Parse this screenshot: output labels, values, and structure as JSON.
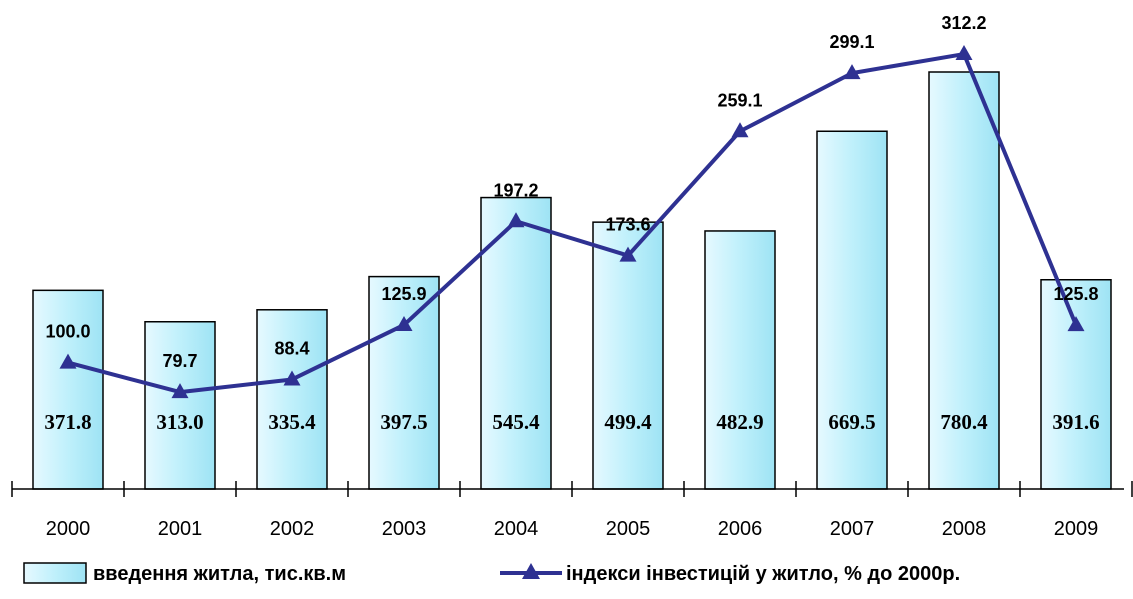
{
  "chart_data": {
    "type": "bar",
    "categories": [
      "2000",
      "2001",
      "2002",
      "2003",
      "2004",
      "2005",
      "2006",
      "2007",
      "2008",
      "2009"
    ],
    "series": [
      {
        "name": "введення житла, тис.кв.м",
        "type": "bar",
        "values": [
          371.8,
          313.0,
          335.4,
          397.5,
          545.4,
          499.4,
          482.9,
          669.5,
          780.4,
          391.6
        ],
        "labels": [
          "371.8",
          "313.0",
          "335.4",
          "397.5",
          "545.4",
          "499.4",
          "482.9",
          "669.5",
          "780.4",
          "391.6"
        ],
        "color": "#c5f0fb"
      },
      {
        "name": "індекси інвестицій у житло, % до 2000р.",
        "type": "line",
        "values": [
          100.0,
          79.7,
          88.4,
          125.9,
          197.2,
          173.6,
          259.1,
          299.1,
          312.2,
          125.8
        ],
        "labels": [
          "100.0",
          "79.7",
          "88.4",
          "125.9",
          "197.2",
          "173.6",
          "259.1",
          "299.1",
          "312.2",
          "125.8"
        ],
        "color": "#2e3192"
      }
    ],
    "grid": false,
    "legend_position": "bottom"
  }
}
